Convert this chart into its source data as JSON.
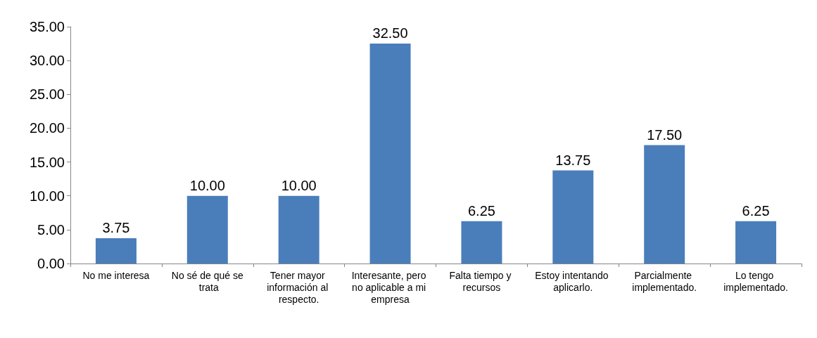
{
  "chart_data": {
    "type": "bar",
    "categories": [
      "No me interesa",
      "No sé de qué se trata",
      "Tener mayor información al respecto.",
      "Interesante, pero no aplicable a mi empresa",
      "Falta tiempo y recursos",
      "Estoy intentando aplicarlo.",
      "Parcialmente implementado.",
      "Lo tengo implementado."
    ],
    "values": [
      3.75,
      10,
      10,
      32.5,
      6.25,
      13.75,
      17.5,
      6.25
    ],
    "value_labels": [
      "3.75",
      "10.00",
      "10.00",
      "32.50",
      "6.25",
      "13.75",
      "17.50",
      "6.25"
    ],
    "color": "#4a7ebb",
    "ylim": [
      0,
      35
    ],
    "yticks": [
      {
        "value": 0,
        "label": "0.00"
      },
      {
        "value": 5,
        "label": "5.00"
      },
      {
        "value": 10,
        "label": "10.00"
      },
      {
        "value": 15,
        "label": "15.00"
      },
      {
        "value": 20,
        "label": "20.00"
      },
      {
        "value": 25,
        "label": "25.00"
      },
      {
        "value": 30,
        "label": "30.00"
      },
      {
        "value": 35,
        "label": "35.00"
      }
    ],
    "grid": false
  }
}
